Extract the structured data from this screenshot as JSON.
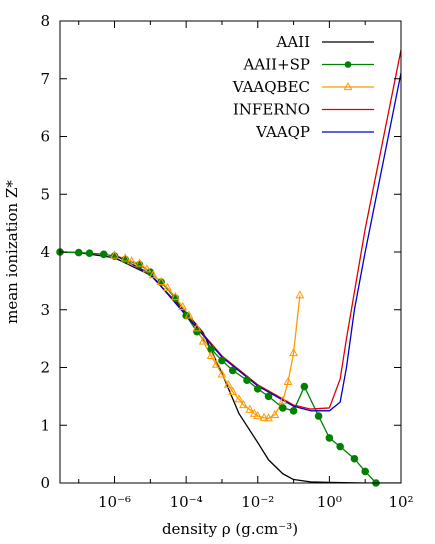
{
  "chart_data": {
    "type": "line",
    "xlabel": "density ρ (g.cm⁻³)",
    "ylabel": "mean ionization Z*",
    "xscale": "log",
    "xlim": [
      3e-08,
      100
    ],
    "ylim": [
      0,
      8
    ],
    "xticks": [
      {
        "value": 1e-06,
        "label": "10⁻⁶"
      },
      {
        "value": 0.0001,
        "label": "10⁻⁴"
      },
      {
        "value": 0.01,
        "label": "10⁻²"
      },
      {
        "value": 1,
        "label": "10⁰"
      },
      {
        "value": 100,
        "label": "10²"
      }
    ],
    "yticks": [
      {
        "value": 0,
        "label": "0"
      },
      {
        "value": 1,
        "label": "1"
      },
      {
        "value": 2,
        "label": "2"
      },
      {
        "value": 3,
        "label": "3"
      },
      {
        "value": 4,
        "label": "4"
      },
      {
        "value": 5,
        "label": "5"
      },
      {
        "value": 6,
        "label": "6"
      },
      {
        "value": 7,
        "label": "7"
      },
      {
        "value": 8,
        "label": "8"
      }
    ],
    "grid": false,
    "legend": "top-right",
    "series": [
      {
        "name": "AAII",
        "color": "#000000",
        "marker": "none",
        "points": [
          [
            3e-08,
            4.0
          ],
          [
            1e-07,
            3.99
          ],
          [
            1e-06,
            3.9
          ],
          [
            1e-05,
            3.6
          ],
          [
            0.0001,
            2.95
          ],
          [
            0.0003,
            2.6
          ],
          [
            0.001,
            1.9
          ],
          [
            0.003,
            1.2
          ],
          [
            0.01,
            0.7
          ],
          [
            0.02,
            0.4
          ],
          [
            0.05,
            0.16
          ],
          [
            0.1,
            0.06
          ],
          [
            0.3,
            0.02
          ],
          [
            1,
            0.01
          ],
          [
            10,
            0.0
          ],
          [
            100,
            0.0
          ]
        ]
      },
      {
        "name": "AAII+SP",
        "color": "#008000",
        "marker": "circle",
        "points": [
          [
            3e-08,
            4.0
          ],
          [
            1e-07,
            3.99
          ],
          [
            2e-07,
            3.98
          ],
          [
            5e-07,
            3.96
          ],
          [
            1e-06,
            3.93
          ],
          [
            2e-06,
            3.87
          ],
          [
            5e-06,
            3.78
          ],
          [
            1e-05,
            3.65
          ],
          [
            2e-05,
            3.48
          ],
          [
            5e-05,
            3.2
          ],
          [
            0.0001,
            2.9
          ],
          [
            0.0002,
            2.62
          ],
          [
            0.0005,
            2.32
          ],
          [
            0.001,
            2.12
          ],
          [
            0.002,
            1.95
          ],
          [
            0.005,
            1.78
          ],
          [
            0.01,
            1.63
          ],
          [
            0.02,
            1.5
          ],
          [
            0.05,
            1.3
          ],
          [
            0.1,
            1.25
          ],
          [
            0.2,
            1.67
          ],
          [
            0.5,
            1.16
          ],
          [
            1,
            0.78
          ],
          [
            2,
            0.63
          ],
          [
            5,
            0.42
          ],
          [
            10,
            0.2
          ],
          [
            20,
            0.0
          ]
        ]
      },
      {
        "name": "VAAQBEC",
        "color": "#ff9900",
        "marker": "triangle",
        "points": [
          [
            1e-06,
            3.94
          ],
          [
            2e-06,
            3.89
          ],
          [
            3e-06,
            3.84
          ],
          [
            5e-06,
            3.8
          ],
          [
            8e-06,
            3.7
          ],
          [
            1.2e-05,
            3.6
          ],
          [
            2e-05,
            3.48
          ],
          [
            3e-05,
            3.38
          ],
          [
            5e-05,
            3.22
          ],
          [
            8e-05,
            3.05
          ],
          [
            0.00012,
            2.9
          ],
          [
            0.0002,
            2.68
          ],
          [
            0.0003,
            2.45
          ],
          [
            0.0005,
            2.2
          ],
          [
            0.0007,
            2.05
          ],
          [
            0.001,
            1.88
          ],
          [
            0.0015,
            1.7
          ],
          [
            0.002,
            1.58
          ],
          [
            0.003,
            1.45
          ],
          [
            0.004,
            1.35
          ],
          [
            0.006,
            1.27
          ],
          [
            0.008,
            1.2
          ],
          [
            0.01,
            1.16
          ],
          [
            0.015,
            1.13
          ],
          [
            0.02,
            1.12
          ],
          [
            0.03,
            1.18
          ],
          [
            0.05,
            1.42
          ],
          [
            0.07,
            1.75
          ],
          [
            0.1,
            2.25
          ],
          [
            0.15,
            3.25
          ]
        ]
      },
      {
        "name": "INFERNO",
        "color": "#e00000",
        "marker": "none",
        "points": [
          [
            1e-06,
            3.95
          ],
          [
            1e-05,
            3.62
          ],
          [
            0.0001,
            2.92
          ],
          [
            0.001,
            2.2
          ],
          [
            0.01,
            1.7
          ],
          [
            0.1,
            1.35
          ],
          [
            0.3,
            1.28
          ],
          [
            1,
            1.3
          ],
          [
            2,
            1.8
          ],
          [
            3,
            2.5
          ],
          [
            10,
            4.4
          ],
          [
            100,
            7.5
          ]
        ]
      },
      {
        "name": "VAAQP",
        "color": "#0000cc",
        "marker": "none",
        "points": [
          [
            1e-06,
            3.95
          ],
          [
            1e-05,
            3.62
          ],
          [
            0.0001,
            2.9
          ],
          [
            0.001,
            2.18
          ],
          [
            0.01,
            1.68
          ],
          [
            0.1,
            1.33
          ],
          [
            0.3,
            1.25
          ],
          [
            1,
            1.25
          ],
          [
            2,
            1.4
          ],
          [
            3,
            2.0
          ],
          [
            5,
            3.0
          ],
          [
            10,
            4.0
          ],
          [
            100,
            7.1
          ]
        ]
      }
    ]
  }
}
